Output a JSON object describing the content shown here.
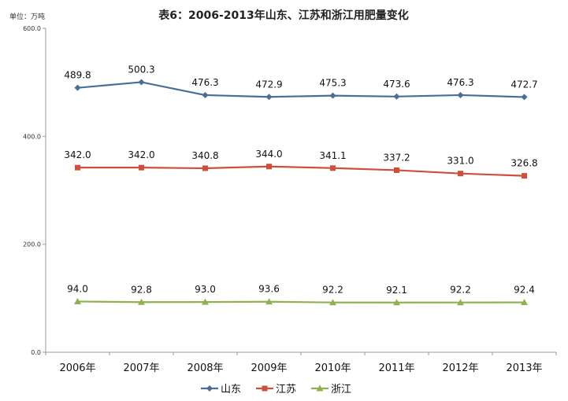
{
  "chart_data": {
    "type": "line",
    "title": "表6：2006-2013年山东、江苏和浙江用肥量变化",
    "unit_label": "单位：万吨",
    "categories": [
      "2006年",
      "2007年",
      "2008年",
      "2009年",
      "2010年",
      "2011年",
      "2012年",
      "2013年"
    ],
    "ylim": [
      0,
      600
    ],
    "yticks": [
      {
        "value": 0,
        "label": "0.0"
      },
      {
        "value": 200,
        "label": "200.0"
      },
      {
        "value": 400,
        "label": "400.0"
      },
      {
        "value": 600,
        "label": "600.0"
      }
    ],
    "grid": false,
    "legend": "bottom",
    "series": [
      {
        "name": "山东",
        "color": "#4a6e96",
        "marker": "diamond",
        "values": [
          489.8,
          500.3,
          476.3,
          472.9,
          475.3,
          473.6,
          476.3,
          472.7
        ],
        "labels": [
          "489.8",
          "500.3",
          "476.3",
          "472.9",
          "475.3",
          "473.6",
          "476.3",
          "472.7"
        ]
      },
      {
        "name": "江苏",
        "color": "#cf4f3a",
        "marker": "square",
        "values": [
          342.0,
          342.0,
          340.8,
          344.0,
          341.1,
          337.2,
          331.0,
          326.8
        ],
        "labels": [
          "342.0",
          "342.0",
          "340.8",
          "344.0",
          "341.1",
          "337.2",
          "331.0",
          "326.8"
        ]
      },
      {
        "name": "浙江",
        "color": "#8fb151",
        "marker": "triangle",
        "values": [
          94.0,
          92.8,
          93.0,
          93.6,
          92.2,
          92.1,
          92.2,
          92.4
        ],
        "labels": [
          "94.0",
          "92.8",
          "93.0",
          "93.6",
          "92.2",
          "92.1",
          "92.2",
          "92.4"
        ]
      }
    ]
  }
}
